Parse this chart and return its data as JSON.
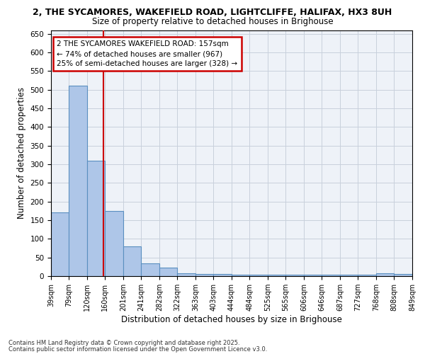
{
  "title_line1": "2, THE SYCAMORES, WAKEFIELD ROAD, LIGHTCLIFFE, HALIFAX, HX3 8UH",
  "title_line2": "Size of property relative to detached houses in Brighouse",
  "xlabel": "Distribution of detached houses by size in Brighouse",
  "ylabel": "Number of detached properties",
  "bar_values": [
    170,
    510,
    310,
    175,
    80,
    35,
    22,
    8,
    5,
    5,
    3,
    3,
    3,
    3,
    3,
    3,
    3,
    3,
    8,
    5
  ],
  "bin_edges": [
    39,
    79,
    120,
    160,
    201,
    241,
    282,
    322,
    363,
    403,
    444,
    484,
    525,
    565,
    606,
    646,
    687,
    727,
    768,
    808,
    849
  ],
  "bar_color": "#aec6e8",
  "bar_edge_color": "#5a8fc0",
  "red_line_x": 157,
  "annotation_line1": "2 THE SYCAMORES WAKEFIELD ROAD: 157sqm",
  "annotation_line2": "← 74% of detached houses are smaller (967)",
  "annotation_line3": "25% of semi-detached houses are larger (328) →",
  "annotation_box_color": "#ffffff",
  "annotation_box_edge": "#cc0000",
  "footnote1": "Contains HM Land Registry data © Crown copyright and database right 2025.",
  "footnote2": "Contains public sector information licensed under the Open Government Licence v3.0.",
  "ylim": [
    0,
    660
  ],
  "yticks": [
    0,
    50,
    100,
    150,
    200,
    250,
    300,
    350,
    400,
    450,
    500,
    550,
    600,
    650
  ],
  "bg_color": "#eef2f8",
  "grid_color": "#c8d0dc"
}
